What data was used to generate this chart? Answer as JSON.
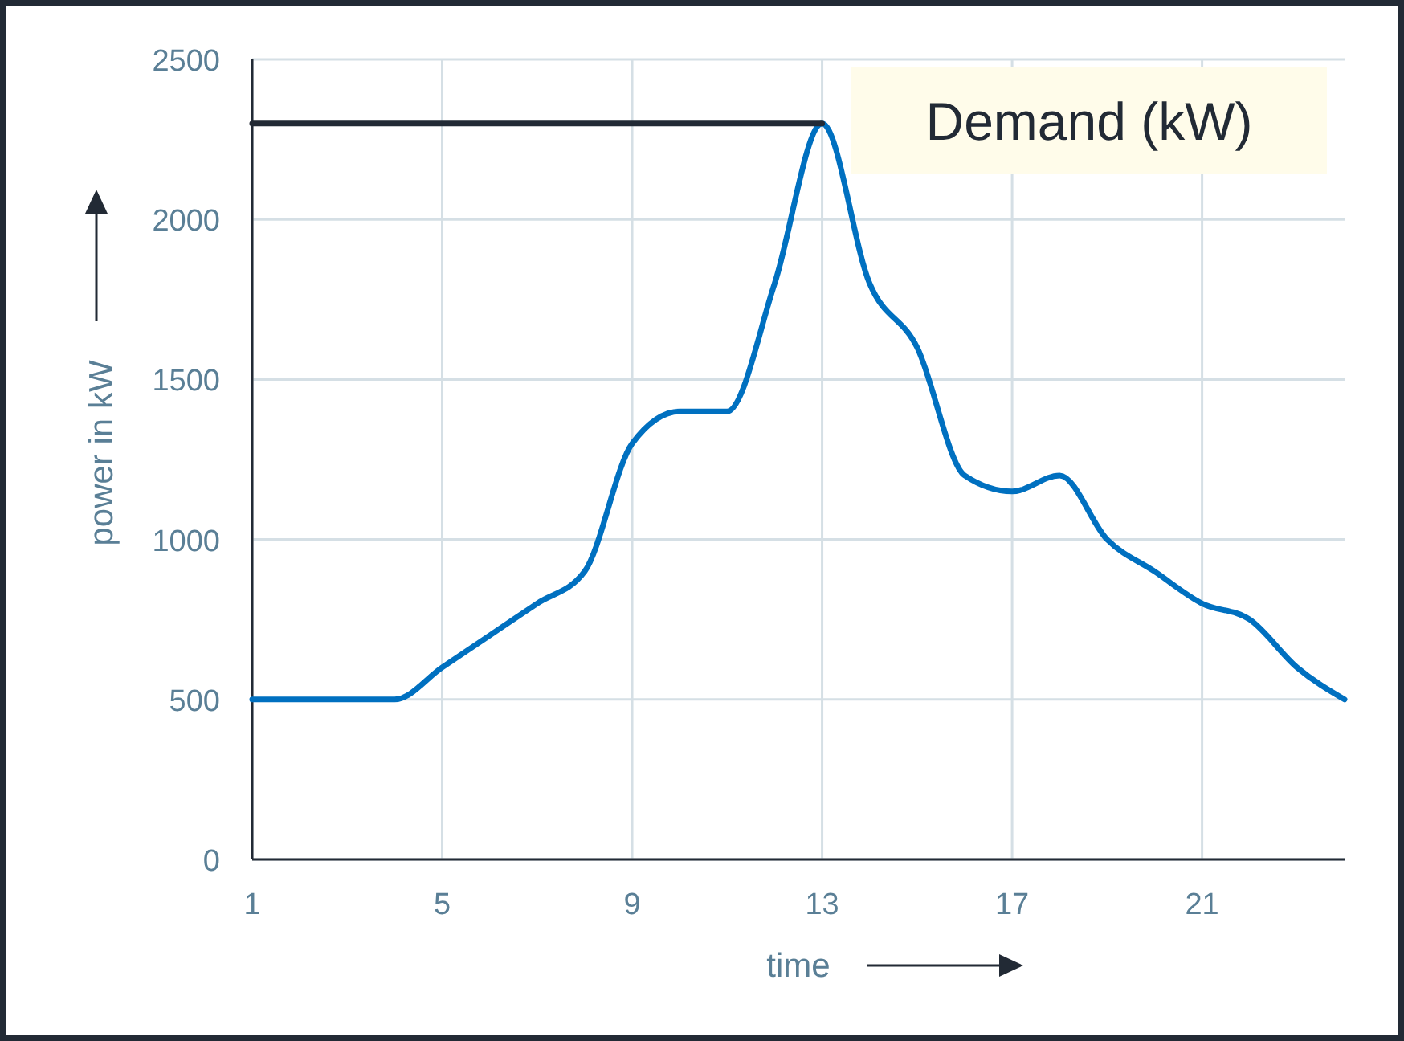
{
  "chart_data": {
    "type": "line",
    "title": "Demand (kW)",
    "xlabel": "time",
    "ylabel": "power in kW",
    "x": [
      1,
      2,
      3,
      4,
      5,
      6,
      7,
      8,
      9,
      10,
      11,
      12,
      13,
      14,
      15,
      16,
      17,
      18,
      19,
      20,
      21,
      22,
      23,
      24
    ],
    "series": [
      {
        "color": "#0070c0",
        "values": [
          500,
          500,
          500,
          500,
          600,
          700,
          800,
          900,
          1300,
          1400,
          1400,
          1800,
          2300,
          1800,
          1600,
          1200,
          1150,
          1200,
          1000,
          900,
          800,
          750,
          600,
          500
        ]
      },
      {
        "color": "#222a35",
        "x": [
          1,
          13
        ],
        "values": [
          2300,
          2300
        ]
      }
    ],
    "xlim": [
      1,
      24
    ],
    "xticks": [
      1,
      5,
      9,
      13,
      17,
      21
    ],
    "ylim": [
      0,
      2500
    ],
    "yticks": [
      0,
      500,
      1000,
      1500,
      2000,
      2500
    ],
    "grid": true,
    "marker": "none",
    "line_style": "solid"
  }
}
